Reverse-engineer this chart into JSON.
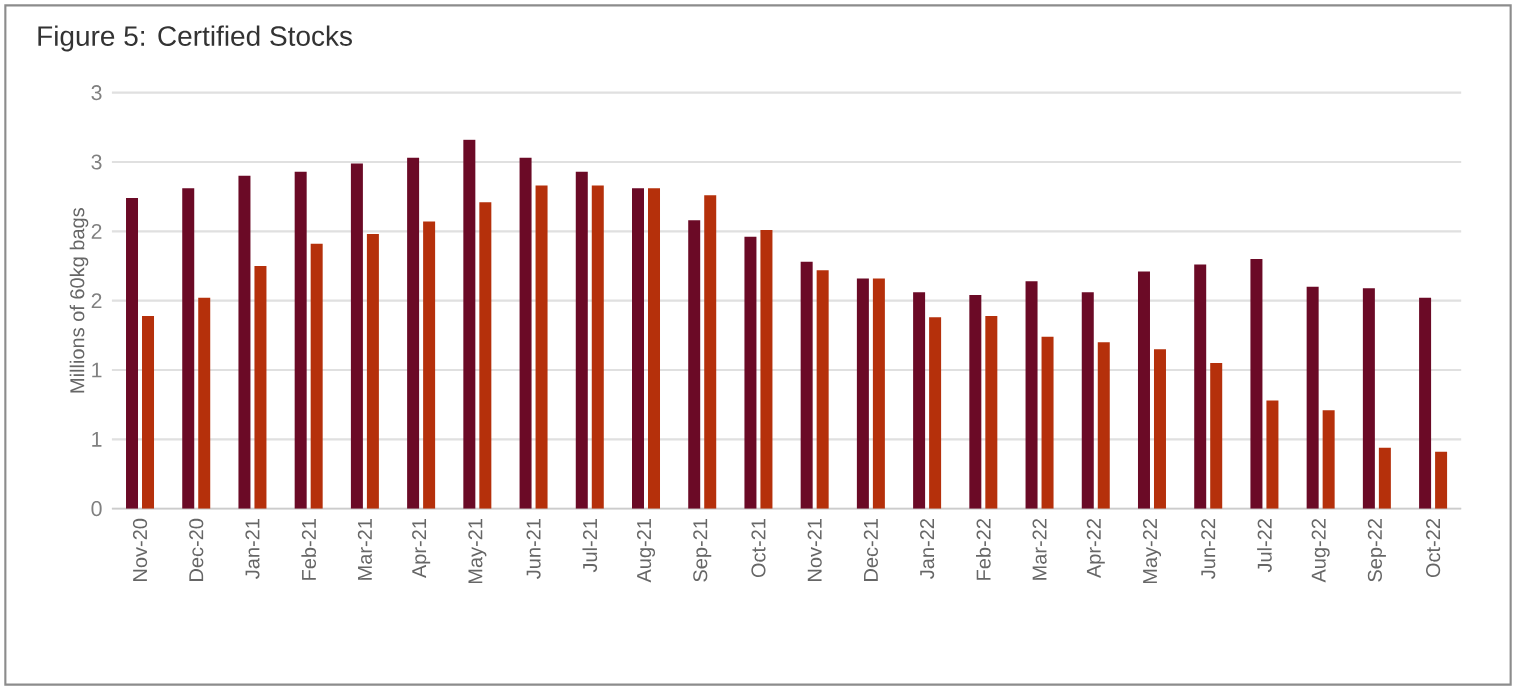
{
  "chart_data": {
    "type": "bar",
    "title": "Figure 5: Certified Stocks",
    "ylabel": "Millions of 60kg bags",
    "categories": [
      "Nov-20",
      "Dec-20",
      "Jan-21",
      "Feb-21",
      "Mar-21",
      "Apr-21",
      "May-21",
      "Jun-21",
      "Jul-21",
      "Aug-21",
      "Sep-21",
      "Oct-21",
      "Nov-21",
      "Dec-21",
      "Jan-22",
      "Feb-22",
      "Mar-22",
      "Apr-22",
      "May-22",
      "Jun-22",
      "Jul-22",
      "Aug-22",
      "Sep-22",
      "Oct-22"
    ],
    "series": [
      {
        "color": "#6b0a26",
        "values": [
          2.24,
          2.31,
          2.4,
          2.43,
          2.49,
          2.53,
          2.66,
          2.53,
          2.43,
          2.31,
          2.08,
          1.96,
          1.78,
          1.66,
          1.56,
          1.54,
          1.64,
          1.56,
          1.71,
          1.76,
          1.8,
          1.6,
          1.59,
          1.52
        ]
      },
      {
        "color": "#b5300b",
        "values": [
          1.39,
          1.52,
          1.75,
          1.91,
          1.98,
          2.07,
          2.21,
          2.33,
          2.33,
          2.31,
          2.26,
          2.01,
          1.72,
          1.66,
          1.38,
          1.39,
          1.24,
          1.2,
          1.15,
          1.05,
          0.78,
          0.71,
          0.44,
          0.41
        ]
      }
    ],
    "ylim": [
      0,
      3
    ],
    "yticks": [
      0,
      {
        "value": 0.5,
        "label": "1"
      },
      {
        "value": 1,
        "label": "1"
      },
      {
        "value": 1.5,
        "label": "2"
      },
      {
        "value": 2,
        "label": "2"
      },
      {
        "value": 2.5,
        "label": "3"
      },
      {
        "value": 3,
        "label": "3"
      }
    ],
    "grid": "y"
  }
}
